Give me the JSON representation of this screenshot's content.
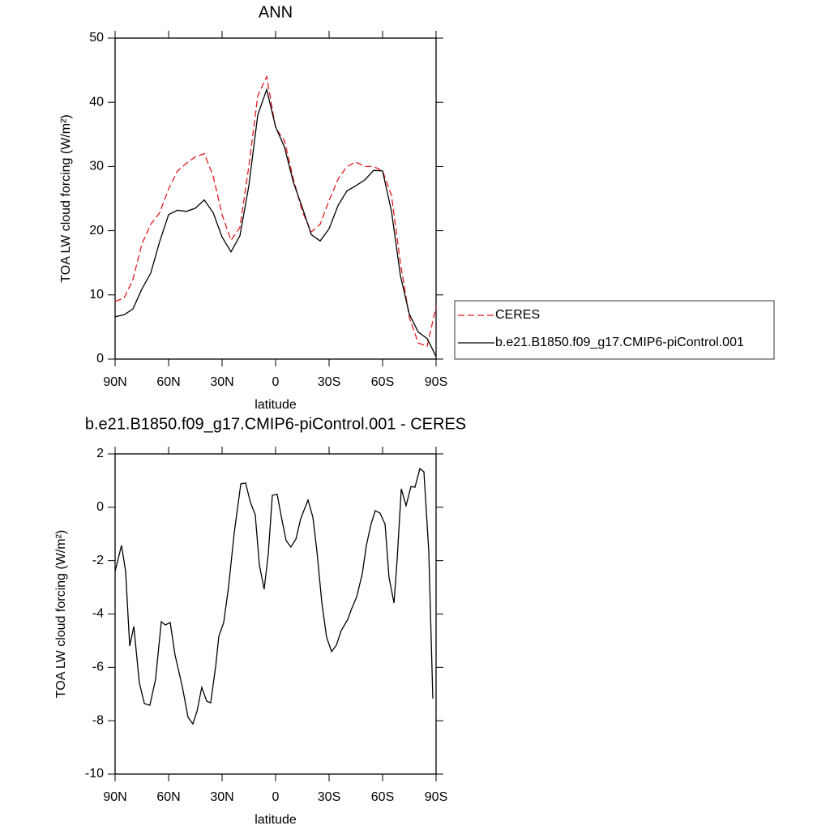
{
  "chart_data": [
    {
      "type": "line",
      "title": "ANN",
      "x_label": "latitude",
      "y_label": "TOA LW cloud forcing (W/m²)",
      "x": [
        90,
        85,
        80,
        75,
        70,
        65,
        60,
        55,
        50,
        45,
        40,
        35,
        30,
        25,
        20,
        15,
        10,
        5,
        0,
        -5,
        -10,
        -15,
        -20,
        -25,
        -30,
        -35,
        -40,
        -45,
        -50,
        -55,
        -60,
        -65,
        -70,
        -75,
        -80,
        -85,
        -90
      ],
      "series": [
        {
          "name": "CERES",
          "color": "#e31a1c",
          "dash": true,
          "values": [
            9,
            9.5,
            12.4,
            17.9,
            21,
            22.8,
            26.5,
            29.3,
            30.5,
            31.5,
            32,
            28.5,
            22.5,
            18.5,
            20.5,
            30,
            41,
            44,
            36,
            34,
            28,
            23,
            19.8,
            21,
            24.7,
            28,
            30,
            30.7,
            30,
            30,
            29.3,
            25.5,
            15,
            6.5,
            2.5,
            2,
            8.2
          ]
        },
        {
          "name": "b.e21.B1850.f09_g17.CMIP6-piControl.001",
          "color": "#000000",
          "dash": false,
          "values": [
            6.6,
            6.9,
            7.8,
            10.9,
            13.4,
            18.3,
            22.5,
            23.2,
            23,
            23.5,
            24.8,
            22.8,
            19,
            16.7,
            19.2,
            27,
            38,
            42,
            36.2,
            33,
            27.5,
            23.6,
            19.4,
            18.4,
            20.3,
            23.9,
            26.2,
            27,
            27.9,
            29.4,
            29.3,
            23,
            13,
            7,
            4.2,
            3.2,
            0.4
          ]
        }
      ],
      "xlim": [
        90,
        -90
      ],
      "xticks": [
        {
          "value": 90,
          "label": "90N"
        },
        {
          "value": 60,
          "label": "60N"
        },
        {
          "value": 30,
          "label": "30N"
        },
        0,
        {
          "value": -30,
          "label": "30S"
        },
        {
          "value": -60,
          "label": "60S"
        },
        {
          "value": -90,
          "label": "90S"
        }
      ],
      "ylim": [
        0,
        50
      ],
      "yticks": [
        0,
        10,
        20,
        30,
        40,
        50
      ],
      "legend": "right"
    },
    {
      "type": "line",
      "title": "b.e21.B1850.f09_g17.CMIP6-piControl.001 - CERES",
      "x_label": "latitude",
      "y_label": "TOA LW cloud forcing (W/m²)",
      "x": [
        90,
        86.4,
        84.1,
        81.8,
        79.5,
        76.4,
        73.6,
        70.5,
        67.3,
        64.1,
        61.8,
        59.1,
        56.4,
        52.3,
        49.1,
        46.4,
        44.1,
        41.4,
        38.6,
        36.4,
        33.6,
        31.8,
        29.1,
        26.4,
        23.2,
        19.5,
        16.8,
        14.1,
        11.4,
        9.1,
        6.4,
        4.1,
        1.8,
        -0.9,
        -3.2,
        -5.9,
        -8.6,
        -11.4,
        -14.1,
        -18.2,
        -20.9,
        -23.2,
        -25.9,
        -28.6,
        -31.4,
        -34.1,
        -36.8,
        -40.5,
        -42.3,
        -45.5,
        -48.6,
        -50.9,
        -53.6,
        -55.9,
        -58.6,
        -61.4,
        -63.6,
        -66.4,
        -68.2,
        -70.5,
        -73.2,
        -75.9,
        -78.2,
        -80.9,
        -83.2,
        -85.9,
        -88.2
      ],
      "values": [
        -2.4,
        -1.43,
        -2.4,
        -5.2,
        -4.47,
        -6.57,
        -7.36,
        -7.42,
        -6.45,
        -4.29,
        -4.41,
        -4.32,
        -5.53,
        -6.72,
        -7.87,
        -8.12,
        -7.66,
        -6.75,
        -7.27,
        -7.33,
        -5.96,
        -4.83,
        -4.32,
        -3.01,
        -0.95,
        0.88,
        0.91,
        0.18,
        -0.28,
        -2.16,
        -3.07,
        -1.74,
        0.45,
        0.48,
        -0.34,
        -1.25,
        -1.49,
        -1.19,
        -0.43,
        0.27,
        -0.37,
        -1.65,
        -3.56,
        -4.87,
        -5.41,
        -5.17,
        -4.62,
        -4.2,
        -3.86,
        -3.35,
        -2.5,
        -1.43,
        -0.61,
        -0.13,
        -0.22,
        -0.64,
        -2.62,
        -3.59,
        -1.95,
        0.69,
        0.06,
        0.78,
        0.75,
        1.45,
        1.33,
        -1.65,
        -7.17
      ],
      "color": "#000000",
      "xlim": [
        90,
        -90
      ],
      "xticks": [
        {
          "value": 90,
          "label": "90N"
        },
        {
          "value": 60,
          "label": "60N"
        },
        {
          "value": 30,
          "label": "30N"
        },
        0,
        {
          "value": -30,
          "label": "30S"
        },
        {
          "value": -60,
          "label": "60S"
        },
        {
          "value": -90,
          "label": "90S"
        }
      ],
      "ylim": [
        -10,
        2
      ],
      "yticks": [
        2,
        0,
        -2,
        -4,
        -6,
        -8,
        -10
      ]
    }
  ]
}
